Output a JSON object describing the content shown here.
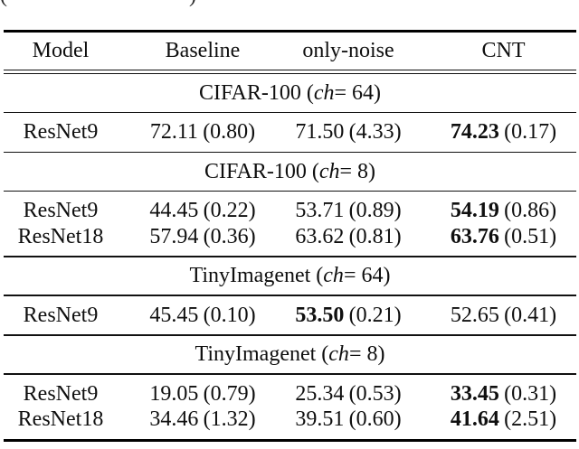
{
  "page": {
    "background": "#ffffff",
    "text_color": "#0f0f0f",
    "rule_color": "#000000"
  },
  "cropped_caption_fragments": {
    "left_glyph": "(",
    "right_glyph": ")"
  },
  "table": {
    "header": {
      "columns": [
        "Model",
        "Baseline",
        "only-noise",
        "CNT"
      ]
    },
    "sections": [
      {
        "title": {
          "pre": "CIFAR-100 (",
          "var": "ch",
          "post": " = 64)"
        },
        "rows": [
          {
            "model": "ResNet9",
            "baseline": {
              "value": "72.11",
              "std": "(0.80)",
              "bold": false
            },
            "only_noise": {
              "value": "71.50",
              "std": "(4.33)",
              "bold": false
            },
            "cnt": {
              "value": "74.23",
              "std": "(0.17)",
              "bold": true
            }
          }
        ]
      },
      {
        "title": {
          "pre": "CIFAR-100 (",
          "var": "ch",
          "post": " = 8)"
        },
        "rows": [
          {
            "model": "ResNet9",
            "baseline": {
              "value": "44.45",
              "std": "(0.22)",
              "bold": false
            },
            "only_noise": {
              "value": "53.71",
              "std": "(0.89)",
              "bold": false
            },
            "cnt": {
              "value": "54.19",
              "std": "(0.86)",
              "bold": true
            }
          },
          {
            "model": "ResNet18",
            "baseline": {
              "value": "57.94",
              "std": "(0.36)",
              "bold": false
            },
            "only_noise": {
              "value": "63.62",
              "std": "(0.81)",
              "bold": false
            },
            "cnt": {
              "value": "63.76",
              "std": "(0.51)",
              "bold": true
            }
          }
        ]
      },
      {
        "title": {
          "pre": "TinyImagenet (",
          "var": "ch",
          "post": " = 64)"
        },
        "rows": [
          {
            "model": "ResNet9",
            "baseline": {
              "value": "45.45",
              "std": "(0.10)",
              "bold": false
            },
            "only_noise": {
              "value": "53.50",
              "std": "(0.21)",
              "bold": true
            },
            "cnt": {
              "value": "52.65",
              "std": "(0.41)",
              "bold": false
            }
          }
        ]
      },
      {
        "title": {
          "pre": "TinyImagenet (",
          "var": "ch",
          "post": " = 8)"
        },
        "rows": [
          {
            "model": "ResNet9",
            "baseline": {
              "value": "19.05",
              "std": "(0.79)",
              "bold": false
            },
            "only_noise": {
              "value": "25.34",
              "std": "(0.53)",
              "bold": false
            },
            "cnt": {
              "value": "33.45",
              "std": "(0.31)",
              "bold": true
            }
          },
          {
            "model": "ResNet18",
            "baseline": {
              "value": "34.46",
              "std": "(1.32)",
              "bold": false
            },
            "only_noise": {
              "value": "39.51",
              "std": "(0.60)",
              "bold": false
            },
            "cnt": {
              "value": "41.64",
              "std": "(2.51)",
              "bold": true
            }
          }
        ]
      }
    ]
  }
}
